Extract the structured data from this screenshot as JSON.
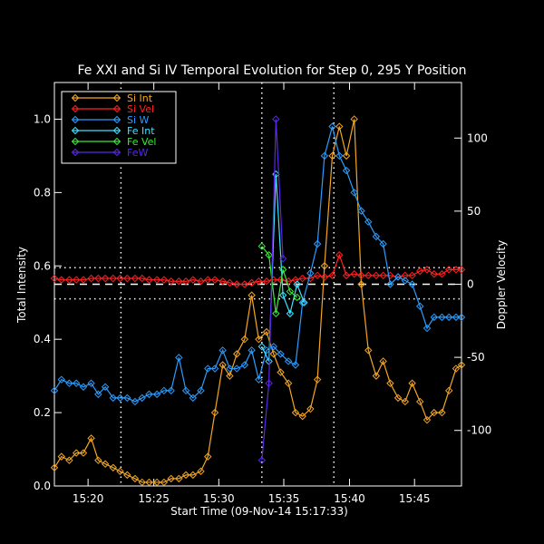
{
  "chart_data": {
    "type": "line",
    "title": "Fe XXI and Si IV Temporal Evolution for Step 0, 295 Y Position",
    "xlabel": "Start Time (09-Nov-14 15:17:33)",
    "ylabel_left": "Total Intensity",
    "ylabel_right": "Doppler Velocity",
    "xlim": [
      15.29,
      15.81
    ],
    "ylim_left": [
      0.0,
      1.1
    ],
    "ylim_right": [
      -138,
      138
    ],
    "x_tick_values": [
      15.333,
      15.417,
      15.5,
      15.583,
      15.667,
      15.75
    ],
    "x_tick_labels": [
      "15:20",
      "15:25",
      "15:30",
      "15:35",
      "15:40",
      "15:45"
    ],
    "y_left_ticks": [
      "0.0",
      "0.2",
      "0.4",
      "0.6",
      "0.8",
      "1.0"
    ],
    "y_left_tick_values": [
      0.0,
      0.2,
      0.4,
      0.6,
      0.8,
      1.0
    ],
    "y_right_ticks": [
      "-100",
      "-50",
      "0",
      "50",
      "100"
    ],
    "y_right_tick_values": [
      -100,
      -50,
      0,
      50,
      100
    ],
    "vertical_lines": [
      15.375,
      15.555,
      15.647
    ],
    "horizontal_lines_left": [
      0.595,
      0.51
    ],
    "zero_line_right": 0,
    "legend": {
      "placement": "top-left"
    },
    "series": [
      {
        "name": "Si Int",
        "color": "#f5a623",
        "axis": "left",
        "x": [
          15.29,
          15.299,
          15.309,
          15.318,
          15.327,
          15.337,
          15.346,
          15.355,
          15.365,
          15.374,
          15.383,
          15.393,
          15.402,
          15.411,
          15.421,
          15.43,
          15.439,
          15.449,
          15.458,
          15.467,
          15.477,
          15.486,
          15.495,
          15.505,
          15.514,
          15.523,
          15.533,
          15.542,
          15.551,
          15.561,
          15.57,
          15.579,
          15.589,
          15.598,
          15.607,
          15.617,
          15.626,
          15.635,
          15.645,
          15.654,
          15.663,
          15.673,
          15.682,
          15.691,
          15.701,
          15.71,
          15.719,
          15.729,
          15.738,
          15.747,
          15.757,
          15.766,
          15.775,
          15.785,
          15.794,
          15.803,
          15.81
        ],
        "y": [
          0.05,
          0.08,
          0.07,
          0.09,
          0.09,
          0.13,
          0.07,
          0.06,
          0.05,
          0.04,
          0.03,
          0.02,
          0.01,
          0.01,
          0.01,
          0.01,
          0.02,
          0.02,
          0.03,
          0.03,
          0.04,
          0.08,
          0.2,
          0.33,
          0.3,
          0.36,
          0.4,
          0.52,
          0.4,
          0.42,
          0.36,
          0.31,
          0.28,
          0.2,
          0.19,
          0.21,
          0.29,
          0.6,
          0.9,
          0.98,
          0.9,
          1.0,
          0.55,
          0.37,
          0.3,
          0.34,
          0.28,
          0.24,
          0.23,
          0.28,
          0.23,
          0.18,
          0.2,
          0.2,
          0.26,
          0.32,
          0.33
        ]
      },
      {
        "name": "Si Vel",
        "color": "#ff2020",
        "axis": "right",
        "x": [
          15.29,
          15.299,
          15.309,
          15.318,
          15.327,
          15.337,
          15.346,
          15.355,
          15.365,
          15.374,
          15.383,
          15.393,
          15.402,
          15.411,
          15.421,
          15.43,
          15.439,
          15.449,
          15.458,
          15.467,
          15.477,
          15.486,
          15.495,
          15.505,
          15.514,
          15.523,
          15.533,
          15.542,
          15.551,
          15.561,
          15.57,
          15.579,
          15.589,
          15.598,
          15.607,
          15.617,
          15.626,
          15.635,
          15.645,
          15.654,
          15.663,
          15.673,
          15.682,
          15.691,
          15.701,
          15.71,
          15.719,
          15.729,
          15.738,
          15.747,
          15.757,
          15.766,
          15.775,
          15.785,
          15.794,
          15.803,
          15.81
        ],
        "y": [
          4,
          3,
          3,
          3,
          3,
          4,
          4,
          4,
          4,
          4,
          4,
          4,
          4,
          3,
          3,
          3,
          2,
          2,
          2,
          3,
          2,
          3,
          3,
          2,
          1,
          0,
          0,
          1,
          2,
          2,
          3,
          3,
          2,
          3,
          4,
          4,
          6,
          5,
          6,
          20,
          6,
          7,
          6,
          6,
          6,
          6,
          6,
          5,
          6,
          6,
          9,
          10,
          7,
          7,
          10,
          10,
          10
        ]
      },
      {
        "name": "Si W",
        "color": "#2a9dff",
        "axis": "left",
        "x": [
          15.29,
          15.299,
          15.309,
          15.318,
          15.327,
          15.337,
          15.346,
          15.355,
          15.365,
          15.374,
          15.383,
          15.393,
          15.402,
          15.411,
          15.421,
          15.43,
          15.439,
          15.449,
          15.458,
          15.467,
          15.477,
          15.486,
          15.495,
          15.505,
          15.514,
          15.523,
          15.533,
          15.542,
          15.551,
          15.561,
          15.57,
          15.579,
          15.589,
          15.598,
          15.607,
          15.617,
          15.626,
          15.635,
          15.645,
          15.654,
          15.663,
          15.673,
          15.682,
          15.691,
          15.701,
          15.71,
          15.719,
          15.729,
          15.738,
          15.747,
          15.757,
          15.766,
          15.775,
          15.785,
          15.794,
          15.803,
          15.81
        ],
        "y": [
          0.26,
          0.29,
          0.28,
          0.28,
          0.27,
          0.28,
          0.25,
          0.27,
          0.24,
          0.24,
          0.24,
          0.23,
          0.24,
          0.25,
          0.25,
          0.26,
          0.26,
          0.35,
          0.26,
          0.24,
          0.26,
          0.32,
          0.32,
          0.37,
          0.32,
          0.32,
          0.33,
          0.37,
          0.29,
          0.37,
          0.38,
          0.36,
          0.34,
          0.33,
          0.5,
          0.58,
          0.66,
          0.9,
          0.98,
          0.9,
          0.86,
          0.8,
          0.75,
          0.72,
          0.68,
          0.66,
          0.55,
          0.57,
          0.56,
          0.55,
          0.49,
          0.43,
          0.46,
          0.46,
          0.46,
          0.46,
          0.46
        ]
      },
      {
        "name": "Fe Int",
        "color": "#40e0ff",
        "axis": "left",
        "x": [
          15.555,
          15.564,
          15.573,
          15.582,
          15.591,
          15.6,
          15.609
        ],
        "y": [
          0.38,
          0.34,
          0.85,
          0.52,
          0.47,
          0.55,
          0.5
        ]
      },
      {
        "name": "Fe Vel",
        "color": "#3ce63c",
        "axis": "right",
        "x": [
          15.555,
          15.564,
          15.573,
          15.582,
          15.591,
          15.6
        ],
        "y": [
          26,
          20,
          -20,
          10,
          -5,
          -9
        ]
      },
      {
        "name": "FeW",
        "color": "#5a28e6",
        "axis": "left",
        "x": [
          15.555,
          15.564,
          15.573,
          15.582
        ],
        "y": [
          0.07,
          0.28,
          1.0,
          0.62
        ]
      }
    ]
  }
}
